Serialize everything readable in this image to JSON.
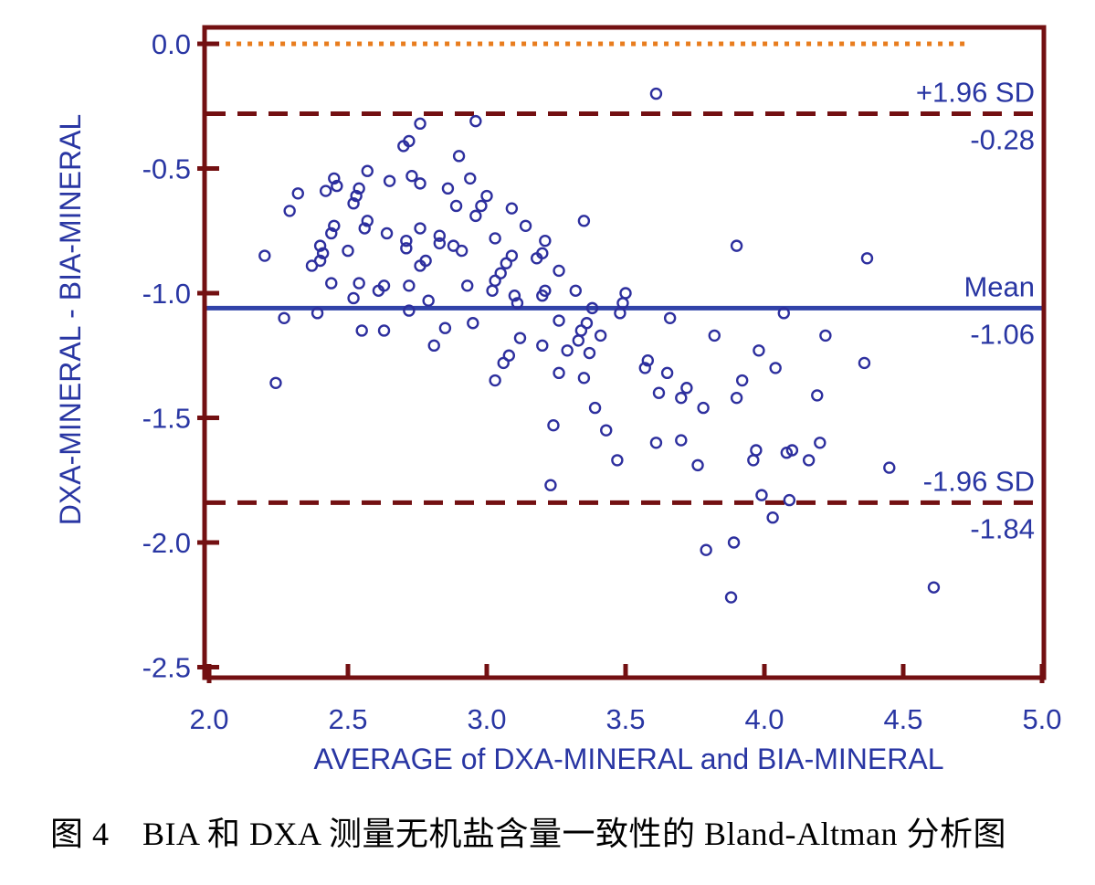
{
  "caption": "图 4　BIA 和 DXA 测量无机盐含量一致性的 Bland-Altman 分析图",
  "colors": {
    "maroon": "#731012",
    "orange": "#E87D1E",
    "blue_line": "#3142A8",
    "point_stroke": "#2D2F9E",
    "axis_text": "#2936A3",
    "caption_text": "#000000",
    "background": "#FFFFFF"
  },
  "chart_data": {
    "type": "scatter",
    "title": "",
    "xlabel": "AVERAGE of DXA-MINERAL and BIA-MINERAL",
    "ylabel": "DXA-MINERAL - BIA-MINERAL",
    "xlim": [
      2.0,
      5.0
    ],
    "ylim": [
      -2.5,
      0.0
    ],
    "grid": false,
    "marker": "open-circle",
    "x_ticks": [
      {
        "v": 2.0,
        "label": "2.0"
      },
      {
        "v": 2.5,
        "label": "2.5"
      },
      {
        "v": 3.0,
        "label": "3.0"
      },
      {
        "v": 3.5,
        "label": "3.5"
      },
      {
        "v": 4.0,
        "label": "4.0"
      },
      {
        "v": 4.5,
        "label": "4.5"
      },
      {
        "v": 5.0,
        "label": "5.0"
      }
    ],
    "y_ticks": [
      {
        "v": 0.0,
        "label": "0.0"
      },
      {
        "v": -0.5,
        "label": "-0.5"
      },
      {
        "v": -1.0,
        "label": "-1.0"
      },
      {
        "v": -1.5,
        "label": "-1.5"
      },
      {
        "v": -2.0,
        "label": "-2.0"
      },
      {
        "v": -2.5,
        "label": "-2.5"
      }
    ],
    "reference_lines": [
      {
        "name": "zero-line",
        "value": 0.0,
        "style": "dotted",
        "color_key": "orange",
        "x_start": 2.02,
        "x_end": 4.74,
        "labels": []
      },
      {
        "name": "upper-loa-line",
        "value": -0.28,
        "style": "dashed",
        "color_key": "maroon",
        "x_start": null,
        "x_end": null,
        "labels": [
          {
            "text": "+1.96 SD",
            "pos": "above"
          },
          {
            "text": "-0.28",
            "pos": "below"
          }
        ]
      },
      {
        "name": "mean-line",
        "value": -1.06,
        "style": "solid",
        "color_key": "blue_line",
        "x_start": null,
        "x_end": null,
        "labels": [
          {
            "text": "Mean",
            "pos": "above"
          },
          {
            "text": "-1.06",
            "pos": "below"
          }
        ]
      },
      {
        "name": "lower-loa-line",
        "value": -1.84,
        "style": "dashed",
        "color_key": "maroon",
        "x_start": null,
        "x_end": null,
        "labels": [
          {
            "text": "-1.96 SD",
            "pos": "above"
          },
          {
            "text": "-1.84",
            "pos": "below"
          }
        ]
      }
    ],
    "points": [
      [
        2.76,
        -0.32
      ],
      [
        2.96,
        -0.31
      ],
      [
        2.72,
        -0.39
      ],
      [
        2.7,
        -0.41
      ],
      [
        2.9,
        -0.45
      ],
      [
        2.57,
        -0.51
      ],
      [
        2.73,
        -0.53
      ],
      [
        2.94,
        -0.54
      ],
      [
        2.45,
        -0.54
      ],
      [
        2.46,
        -0.57
      ],
      [
        2.65,
        -0.55
      ],
      [
        2.54,
        -0.58
      ],
      [
        2.76,
        -0.56
      ],
      [
        2.86,
        -0.58
      ],
      [
        2.32,
        -0.6
      ],
      [
        2.42,
        -0.59
      ],
      [
        2.53,
        -0.61
      ],
      [
        2.52,
        -0.64
      ],
      [
        2.29,
        -0.67
      ],
      [
        2.89,
        -0.65
      ],
      [
        3.0,
        -0.61
      ],
      [
        2.98,
        -0.65
      ],
      [
        2.96,
        -0.69
      ],
      [
        3.09,
        -0.66
      ],
      [
        3.35,
        -0.71
      ],
      [
        3.14,
        -0.73
      ],
      [
        3.61,
        -0.2
      ],
      [
        2.57,
        -0.71
      ],
      [
        2.56,
        -0.74
      ],
      [
        2.76,
        -0.74
      ],
      [
        2.64,
        -0.76
      ],
      [
        2.45,
        -0.73
      ],
      [
        2.44,
        -0.76
      ],
      [
        2.83,
        -0.77
      ],
      [
        2.71,
        -0.79
      ],
      [
        2.71,
        -0.82
      ],
      [
        2.4,
        -0.81
      ],
      [
        2.41,
        -0.84
      ],
      [
        2.83,
        -0.8
      ],
      [
        2.4,
        -0.87
      ],
      [
        2.5,
        -0.83
      ],
      [
        2.2,
        -0.85
      ],
      [
        2.37,
        -0.89
      ],
      [
        2.76,
        -0.89
      ],
      [
        2.78,
        -0.87
      ],
      [
        2.88,
        -0.81
      ],
      [
        2.91,
        -0.83
      ],
      [
        3.03,
        -0.78
      ],
      [
        3.21,
        -0.79
      ],
      [
        3.2,
        -0.84
      ],
      [
        3.18,
        -0.86
      ],
      [
        3.09,
        -0.85
      ],
      [
        3.07,
        -0.88
      ],
      [
        3.05,
        -0.92
      ],
      [
        3.03,
        -0.95
      ],
      [
        3.02,
        -0.99
      ],
      [
        3.26,
        -0.91
      ],
      [
        3.9,
        -0.81
      ],
      [
        4.37,
        -0.86
      ],
      [
        2.44,
        -0.96
      ],
      [
        2.54,
        -0.96
      ],
      [
        2.61,
        -0.99
      ],
      [
        2.63,
        -0.97
      ],
      [
        2.72,
        -0.97
      ],
      [
        2.93,
        -0.97
      ],
      [
        3.1,
        -1.01
      ],
      [
        3.11,
        -1.04
      ],
      [
        3.21,
        -0.99
      ],
      [
        3.2,
        -1.01
      ],
      [
        3.32,
        -0.99
      ],
      [
        3.5,
        -1.0
      ],
      [
        3.49,
        -1.04
      ],
      [
        3.38,
        -1.06
      ],
      [
        3.48,
        -1.08
      ],
      [
        3.66,
        -1.1
      ],
      [
        3.26,
        -1.11
      ],
      [
        3.36,
        -1.12
      ],
      [
        2.72,
        -1.07
      ],
      [
        2.79,
        -1.03
      ],
      [
        2.52,
        -1.02
      ],
      [
        2.27,
        -1.1
      ],
      [
        2.39,
        -1.08
      ],
      [
        2.55,
        -1.15
      ],
      [
        2.63,
        -1.15
      ],
      [
        2.85,
        -1.14
      ],
      [
        2.81,
        -1.21
      ],
      [
        2.95,
        -1.12
      ],
      [
        3.12,
        -1.18
      ],
      [
        3.82,
        -1.17
      ],
      [
        3.34,
        -1.15
      ],
      [
        3.33,
        -1.19
      ],
      [
        3.41,
        -1.17
      ],
      [
        3.2,
        -1.21
      ],
      [
        3.29,
        -1.23
      ],
      [
        3.37,
        -1.24
      ],
      [
        3.08,
        -1.25
      ],
      [
        3.98,
        -1.23
      ],
      [
        4.07,
        -1.08
      ],
      [
        4.22,
        -1.17
      ],
      [
        4.36,
        -1.28
      ],
      [
        4.04,
        -1.3
      ],
      [
        2.24,
        -1.36
      ],
      [
        3.03,
        -1.35
      ],
      [
        3.58,
        -1.27
      ],
      [
        3.57,
        -1.3
      ],
      [
        3.06,
        -1.28
      ],
      [
        3.26,
        -1.32
      ],
      [
        3.35,
        -1.34
      ],
      [
        3.65,
        -1.32
      ],
      [
        3.62,
        -1.4
      ],
      [
        3.72,
        -1.38
      ],
      [
        3.7,
        -1.42
      ],
      [
        3.78,
        -1.46
      ],
      [
        3.92,
        -1.35
      ],
      [
        3.9,
        -1.42
      ],
      [
        3.39,
        -1.46
      ],
      [
        3.24,
        -1.53
      ],
      [
        3.43,
        -1.55
      ],
      [
        3.61,
        -1.6
      ],
      [
        3.7,
        -1.59
      ],
      [
        3.47,
        -1.67
      ],
      [
        3.76,
        -1.69
      ],
      [
        3.97,
        -1.63
      ],
      [
        3.96,
        -1.67
      ],
      [
        3.23,
        -1.77
      ],
      [
        3.99,
        -1.81
      ],
      [
        4.19,
        -1.41
      ],
      [
        4.2,
        -1.6
      ],
      [
        4.08,
        -1.64
      ],
      [
        4.1,
        -1.63
      ],
      [
        4.16,
        -1.67
      ],
      [
        4.45,
        -1.7
      ],
      [
        4.09,
        -1.83
      ],
      [
        4.03,
        -1.9
      ],
      [
        3.79,
        -2.03
      ],
      [
        3.89,
        -2.0
      ],
      [
        3.88,
        -2.22
      ],
      [
        4.61,
        -2.18
      ]
    ]
  }
}
